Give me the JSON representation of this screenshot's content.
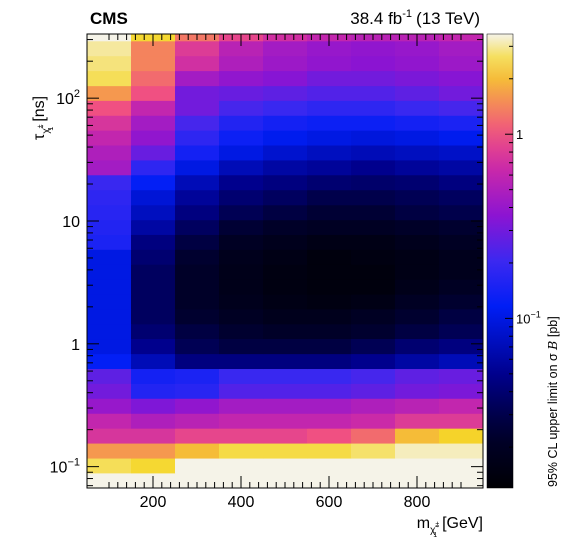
{
  "chart_data": {
    "type": "heatmap",
    "header": {
      "experiment": "CMS",
      "luminosity": "38.4 fb",
      "lumi_exponent": "-1",
      "energy": "(13 TeV)"
    },
    "xlabel": {
      "main": "m",
      "sub": "χ̃",
      "sup": "±",
      "subsub": "1",
      "unit": "[GeV]"
    },
    "ylabel": {
      "main": "τ",
      "sub": "χ̃",
      "sup": "±",
      "subsub": "1",
      "unit": "[ns]"
    },
    "zlabel": {
      "prefix": "95% CL upper limit on σ ",
      "symbol": "B",
      "unit": " [pb]"
    },
    "x_scale": "linear",
    "y_scale": "log",
    "z_scale": "log",
    "xlim": [
      50,
      950
    ],
    "ylim": [
      0.067,
      333
    ],
    "zlim": [
      0.012,
      3.5
    ],
    "x_ticks": [
      {
        "value": 200,
        "label": "200"
      },
      {
        "value": 400,
        "label": "400"
      },
      {
        "value": 600,
        "label": "600"
      },
      {
        "value": 800,
        "label": "800"
      }
    ],
    "y_ticks": [
      {
        "value": 0.1,
        "base": "10",
        "exp": "−1"
      },
      {
        "value": 1,
        "base": "1",
        "exp": ""
      },
      {
        "value": 10,
        "base": "10",
        "exp": ""
      },
      {
        "value": 100,
        "base": "10",
        "exp": "2"
      }
    ],
    "z_ticks": [
      {
        "value": 0.1,
        "base": "10",
        "exp": "−1"
      },
      {
        "value": 1,
        "base": "1",
        "exp": ""
      }
    ],
    "x_bins": [
      50,
      150,
      250,
      350,
      450,
      550,
      650,
      750,
      850,
      950
    ],
    "y_bins": [
      0.067,
      0.0886,
      0.117,
      0.155,
      0.205,
      0.271,
      0.359,
      0.474,
      0.627,
      0.829,
      1.1,
      1.45,
      1.92,
      2.53,
      3.35,
      4.43,
      5.86,
      7.74,
      10.2,
      13.5,
      17.9,
      23.7,
      31.3,
      41.4,
      54.7,
      72.3,
      95.6,
      126,
      167,
      221,
      292,
      333
    ],
    "values": [
      [
        3.5,
        3.5,
        3.5,
        3.5,
        3.5,
        3.5,
        3.5,
        3.5,
        3.5
      ],
      [
        2.6,
        2.4,
        3.5,
        3.5,
        3.5,
        3.5,
        3.5,
        3.5,
        3.5
      ],
      [
        1.6,
        1.6,
        2.0,
        2.5,
        2.5,
        2.5,
        2.7,
        3.2,
        3.2
      ],
      [
        0.75,
        0.75,
        0.9,
        0.9,
        0.9,
        1.0,
        1.2,
        2.0,
        2.3
      ],
      [
        0.6,
        0.5,
        0.55,
        0.6,
        0.6,
        0.6,
        0.65,
        0.8,
        0.8
      ],
      [
        0.4,
        0.33,
        0.38,
        0.45,
        0.45,
        0.45,
        0.5,
        0.55,
        0.6
      ],
      [
        0.3,
        0.16,
        0.17,
        0.24,
        0.24,
        0.24,
        0.26,
        0.3,
        0.32
      ],
      [
        0.26,
        0.14,
        0.15,
        0.2,
        0.2,
        0.2,
        0.22,
        0.26,
        0.28
      ],
      [
        0.12,
        0.07,
        0.045,
        0.045,
        0.045,
        0.045,
        0.05,
        0.06,
        0.07
      ],
      [
        0.1,
        0.05,
        0.032,
        0.028,
        0.028,
        0.028,
        0.032,
        0.04,
        0.045
      ],
      [
        0.1,
        0.04,
        0.028,
        0.024,
        0.022,
        0.022,
        0.024,
        0.028,
        0.032
      ],
      [
        0.1,
        0.035,
        0.024,
        0.02,
        0.018,
        0.018,
        0.02,
        0.024,
        0.028
      ],
      [
        0.1,
        0.035,
        0.022,
        0.018,
        0.016,
        0.015,
        0.016,
        0.02,
        0.024
      ],
      [
        0.1,
        0.035,
        0.022,
        0.017,
        0.015,
        0.014,
        0.014,
        0.017,
        0.02
      ],
      [
        0.1,
        0.035,
        0.022,
        0.017,
        0.015,
        0.014,
        0.014,
        0.016,
        0.018
      ],
      [
        0.1,
        0.04,
        0.024,
        0.018,
        0.016,
        0.014,
        0.015,
        0.016,
        0.018
      ],
      [
        0.15,
        0.045,
        0.028,
        0.02,
        0.018,
        0.016,
        0.016,
        0.018,
        0.02
      ],
      [
        0.16,
        0.06,
        0.035,
        0.025,
        0.022,
        0.02,
        0.02,
        0.022,
        0.024
      ],
      [
        0.17,
        0.075,
        0.045,
        0.032,
        0.028,
        0.025,
        0.025,
        0.028,
        0.03
      ],
      [
        0.18,
        0.09,
        0.055,
        0.04,
        0.035,
        0.03,
        0.03,
        0.032,
        0.035
      ],
      [
        0.2,
        0.12,
        0.07,
        0.05,
        0.045,
        0.04,
        0.038,
        0.04,
        0.045
      ],
      [
        0.45,
        0.18,
        0.1,
        0.07,
        0.06,
        0.055,
        0.05,
        0.055,
        0.06
      ],
      [
        0.5,
        0.28,
        0.14,
        0.1,
        0.085,
        0.075,
        0.07,
        0.075,
        0.08
      ],
      [
        0.6,
        0.38,
        0.18,
        0.13,
        0.11,
        0.1,
        0.095,
        0.1,
        0.11
      ],
      [
        0.75,
        0.45,
        0.22,
        0.16,
        0.14,
        0.13,
        0.13,
        0.14,
        0.15
      ],
      [
        1.0,
        0.6,
        0.3,
        0.22,
        0.2,
        0.18,
        0.18,
        0.2,
        0.22
      ],
      [
        1.6,
        1.0,
        0.3,
        0.28,
        0.26,
        0.24,
        0.24,
        0.26,
        0.3
      ],
      [
        2.6,
        1.2,
        0.45,
        0.38,
        0.35,
        0.3,
        0.3,
        0.32,
        0.35
      ],
      [
        2.8,
        1.4,
        0.7,
        0.5,
        0.42,
        0.38,
        0.36,
        0.38,
        0.42
      ],
      [
        3.0,
        1.4,
        0.8,
        0.55,
        0.45,
        0.4,
        0.38,
        0.4,
        0.45
      ],
      [
        3.5,
        2.4,
        1.3,
        0.9,
        0.7,
        0.6,
        0.55,
        0.55,
        0.6
      ]
    ]
  }
}
